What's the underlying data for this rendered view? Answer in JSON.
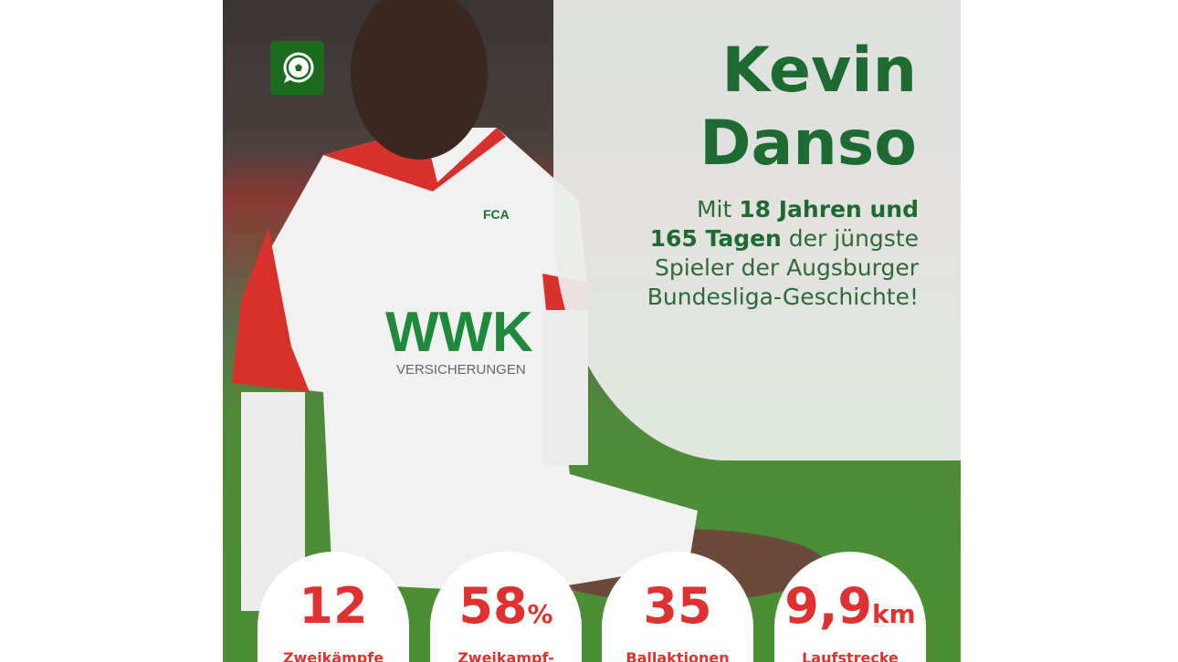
{
  "title": {
    "line1": "Kevin",
    "line2": "Danso"
  },
  "subtitle": {
    "prefix": "Mit ",
    "bold1": "18 Jahren und",
    "bold2": "165 Tagen",
    "rest1": " der jüngste",
    "rest2": "Spieler der Augsburger",
    "rest3": "Bundesliga-Geschichte!"
  },
  "jersey": {
    "sponsor": "WWK",
    "sponsor_sub": "VERSICHERUNGEN",
    "badge": "FCA"
  },
  "logo_icon": "soccer-ball-chat-icon",
  "colors": {
    "green": "#1d6b30",
    "red": "#e0312f"
  },
  "stats": [
    {
      "value": "12",
      "unit": "",
      "label": "Zweikämpfe"
    },
    {
      "value": "58",
      "unit": "%",
      "label": "Zweikampf-"
    },
    {
      "value": "35",
      "unit": "",
      "label": "Ballaktionen"
    },
    {
      "value": "9,9",
      "unit": "km",
      "label": "Laufstrecke"
    }
  ]
}
